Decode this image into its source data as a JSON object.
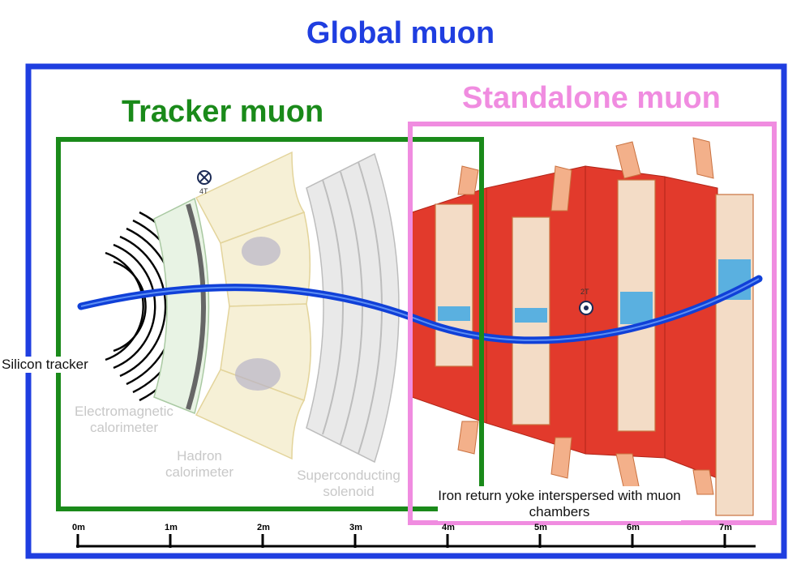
{
  "titles": {
    "global": "Global muon",
    "tracker": "Tracker muon",
    "standalone": "Standalone muon"
  },
  "colors": {
    "global": "#1f3ee0",
    "tracker": "#1a8a1a",
    "standalone": "#f08ce0",
    "track": "#1040d8",
    "iron": "#e23a2c",
    "chamber": "#f3b08a",
    "hcal": "#f6f0d6",
    "ecal": "#e8f3e4"
  },
  "labels": {
    "silicon_tracker": "Silicon tracker",
    "ecal": "Electromagnetic calorimeter",
    "hcal": "Hadron calorimeter",
    "solenoid": "Superconducting solenoid",
    "iron": "Iron return yoke interspersed with muon chambers"
  },
  "fields": {
    "inner": "4T",
    "outer": "2T"
  },
  "axis": {
    "ticks": [
      "0m",
      "1m",
      "2m",
      "3m",
      "4m",
      "5m",
      "6m",
      "7m"
    ]
  }
}
